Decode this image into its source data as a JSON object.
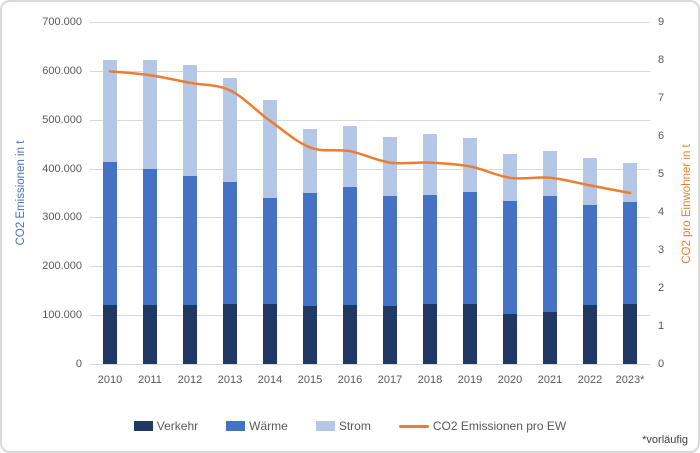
{
  "footnote": "*vorläufig",
  "colors": {
    "verkehr": "#1f3864",
    "waerme": "#4472c4",
    "strom": "#b4c7e7",
    "line": "#ed7d31",
    "grid": "#d9d9d9",
    "tick_text": "#595959",
    "left_axis_title": "#4472c4",
    "right_axis_title": "#ed7d31"
  },
  "chart_data": {
    "type": "bar",
    "stacked": true,
    "grid": true,
    "legend_position": "bottom",
    "categories": [
      "2010",
      "2011",
      "2012",
      "2013",
      "2014",
      "2015",
      "2016",
      "2017",
      "2018",
      "2019",
      "2020",
      "2021",
      "2022",
      "2023*"
    ],
    "series": [
      {
        "name": "Verkehr",
        "color": "#1f3864",
        "values": [
          120000,
          120000,
          120000,
          122000,
          122000,
          119000,
          120000,
          118000,
          122000,
          123000,
          103000,
          106000,
          120000,
          123000
        ]
      },
      {
        "name": "Wärme",
        "color": "#4472c4",
        "values": [
          293000,
          280000,
          265000,
          251000,
          218000,
          231000,
          243000,
          226000,
          224000,
          230000,
          231000,
          237000,
          206000,
          208000
        ]
      },
      {
        "name": "Strom",
        "color": "#b4c7e7",
        "values": [
          210000,
          222000,
          228000,
          213000,
          200000,
          131000,
          124000,
          120000,
          124000,
          109000,
          96000,
          93000,
          96000,
          81000
        ]
      }
    ],
    "line_series": {
      "name": "CO2 Emissionen pro EW",
      "color": "#ed7d31",
      "axis": "right",
      "values": [
        7.7,
        7.6,
        7.4,
        7.2,
        6.4,
        5.7,
        5.6,
        5.3,
        5.3,
        5.2,
        4.9,
        4.9,
        4.7,
        4.5
      ]
    },
    "y_left": {
      "label": "CO2 Emissionen in t",
      "min": 0,
      "max": 700000,
      "tick_step": 100000,
      "tick_labels": [
        "700.000",
        "600.000",
        "500.000",
        "400.000",
        "300.000",
        "200.000",
        "100.000",
        "0"
      ]
    },
    "y_right": {
      "label": "CO2  pro Einwohner in t",
      "min": 0,
      "max": 9,
      "tick_step": 1,
      "tick_labels": [
        "9",
        "8",
        "7",
        "6",
        "5",
        "4",
        "3",
        "2",
        "1",
        "0"
      ]
    }
  }
}
